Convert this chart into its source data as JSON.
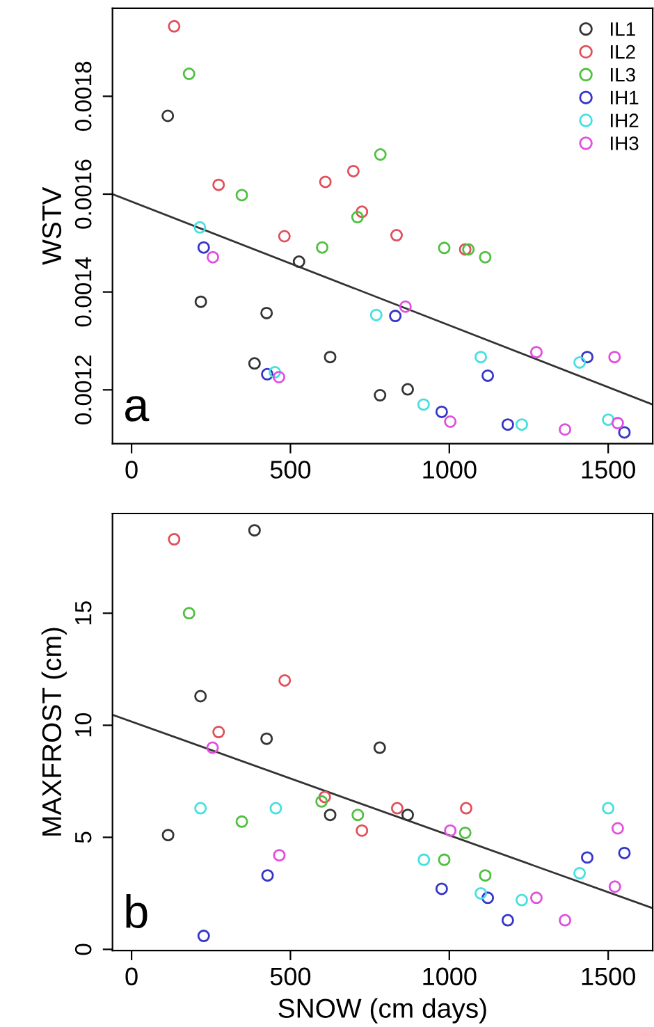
{
  "chart_data": [
    {
      "type": "scatter",
      "ylabel": "WSTV",
      "xlim": [
        -60,
        1640
      ],
      "ylim": [
        0.00109,
        0.00198
      ],
      "xticks": [
        0,
        500,
        1000,
        1500
      ],
      "yticks": [
        0.0012,
        0.0014,
        0.0016,
        0.0018
      ],
      "grid": false,
      "legend": "top right",
      "marker": "circle",
      "annotations": [
        "a"
      ],
      "series": [
        {
          "name": "IL1",
          "color": "#333333",
          "x": [
            114,
            218,
            387,
            425,
            527,
            625,
            782,
            869
          ],
          "values": [
            0.00176,
            0.00138,
            0.001254,
            0.001357,
            0.001462,
            0.001267,
            0.001189,
            0.001201
          ]
        },
        {
          "name": "IL2",
          "color": "#e0505a",
          "x": [
            134,
            274,
            481,
            610,
            698,
            725,
            834,
            1050
          ],
          "values": [
            0.001943,
            0.001619,
            0.001514,
            0.001625,
            0.001647,
            0.001564,
            0.001516,
            0.001487
          ]
        },
        {
          "name": "IL3",
          "color": "#50c040",
          "x": [
            181,
            347,
            600,
            711,
            783,
            984,
            1060,
            1113
          ],
          "values": [
            0.001846,
            0.001598,
            0.001491,
            0.001553,
            0.001681,
            0.00149,
            0.001487,
            0.001471
          ]
        },
        {
          "name": "IH1",
          "color": "#3535c8",
          "x": [
            227,
            427,
            830,
            976,
            1121,
            1184,
            1434,
            1551
          ],
          "values": [
            0.001491,
            0.001232,
            0.001351,
            0.001155,
            0.001229,
            0.001129,
            0.001267,
            0.001113
          ]
        },
        {
          "name": "IH2",
          "color": "#45e0e0",
          "x": [
            215,
            451,
            770,
            919,
            1099,
            1228,
            1410,
            1500
          ],
          "values": [
            0.001532,
            0.001236,
            0.001353,
            0.00117,
            0.001267,
            0.001129,
            0.001256,
            0.001139
          ]
        },
        {
          "name": "IH3",
          "color": "#e050e0",
          "x": [
            256,
            464,
            862,
            1003,
            1274,
            1364,
            1520,
            1530
          ],
          "values": [
            0.001471,
            0.001226,
            0.00137,
            0.001135,
            0.001277,
            0.001119,
            0.001267,
            0.001132
          ]
        },
        {
          "type": "line",
          "marker": "none",
          "color": "#333333",
          "x": [
            -60,
            1640
          ],
          "values": [
            0.0016,
            0.00117
          ]
        }
      ]
    },
    {
      "type": "scatter",
      "xlabel": "SNOW (cm days)",
      "ylabel": "MAXFROST (cm)",
      "xlim": [
        -60,
        1640
      ],
      "ylim": [
        -0.05,
        19.45
      ],
      "xticks": [
        0,
        500,
        1000,
        1500
      ],
      "yticks": [
        0,
        5,
        10,
        15
      ],
      "grid": false,
      "marker": "circle",
      "annotations": [
        "b"
      ],
      "series": [
        {
          "color": "#333333",
          "x": [
            115,
            217,
            387,
            425,
            625,
            781,
            869
          ],
          "values": [
            5.1,
            11.3,
            18.7,
            9.4,
            6.0,
            9.0,
            6.0
          ]
        },
        {
          "color": "#e0505a",
          "x": [
            134,
            274,
            482,
            608,
            725,
            836,
            1053
          ],
          "values": [
            18.3,
            9.7,
            12.0,
            6.8,
            5.3,
            6.3,
            6.3
          ]
        },
        {
          "color": "#50c040",
          "x": [
            181,
            347,
            598,
            712,
            984,
            1050,
            1113
          ],
          "values": [
            15.0,
            5.7,
            6.6,
            6.0,
            4.0,
            5.2,
            3.3
          ]
        },
        {
          "color": "#3535c8",
          "x": [
            227,
            428,
            976,
            1121,
            1184,
            1434,
            1551
          ],
          "values": [
            0.6,
            3.3,
            2.7,
            2.3,
            1.3,
            4.1,
            4.3
          ]
        },
        {
          "color": "#45e0e0",
          "x": [
            217,
            454,
            920,
            1099,
            1228,
            1410,
            1500
          ],
          "values": [
            6.3,
            6.3,
            4.0,
            2.5,
            2.2,
            3.4,
            6.3
          ]
        },
        {
          "color": "#e050e0",
          "x": [
            255,
            465,
            1003,
            1274,
            1364,
            1521,
            1530
          ],
          "values": [
            9.0,
            4.2,
            5.3,
            2.3,
            1.3,
            2.8,
            5.4
          ]
        },
        {
          "type": "line",
          "marker": "none",
          "color": "#333333",
          "x": [
            -60,
            1640
          ],
          "values": [
            10.47,
            1.84
          ]
        }
      ]
    }
  ]
}
